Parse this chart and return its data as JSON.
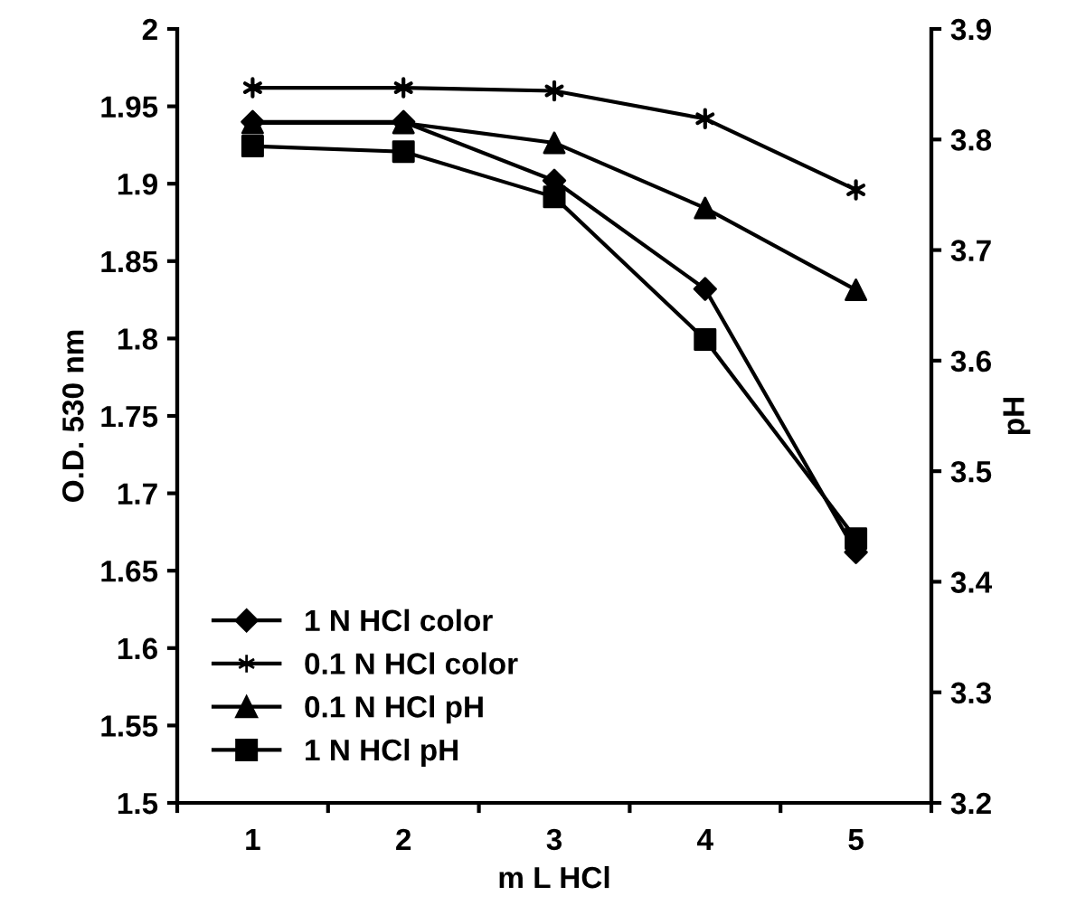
{
  "chart_data": {
    "type": "line",
    "xlabel": "m L HCl",
    "ylabel": "O.D. 530 nm",
    "y2label": "pH",
    "categories": [
      "1",
      "2",
      "3",
      "4",
      "5"
    ],
    "ylim": [
      1.5,
      2
    ],
    "yticks": [
      1.5,
      1.55,
      1.6,
      1.65,
      1.7,
      1.75,
      1.8,
      1.85,
      1.9,
      1.95,
      2
    ],
    "y2lim": [
      3.2,
      3.9
    ],
    "y2ticks": [
      3.2,
      3.3,
      3.4,
      3.5,
      3.6,
      3.7,
      3.8,
      3.9
    ],
    "series": [
      {
        "name": "1 N HCl color",
        "color": "#000000",
        "marker": "diamond",
        "values": [
          1.94,
          1.94,
          1.902,
          1.832,
          1.662
        ]
      },
      {
        "name": "0.1 N HCl color",
        "color": "#000000",
        "marker": "cross",
        "values": [
          1.962,
          1.962,
          1.96,
          1.942,
          1.896
        ]
      },
      {
        "name": "0.1 N HCl pH",
        "color": "#000000",
        "marker": "triangle",
        "axis": "y2",
        "values": [
          3.815,
          3.815,
          3.797,
          3.738,
          3.664
        ]
      },
      {
        "name": "1 N HCl pH",
        "color": "#000000",
        "marker": "square",
        "axis": "y2",
        "values": [
          3.794,
          3.789,
          3.748,
          3.619,
          3.439
        ]
      }
    ],
    "line_style": "solid",
    "grid": false,
    "legend": "bottom left"
  }
}
